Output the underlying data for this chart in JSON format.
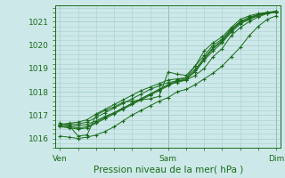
{
  "xlabel": "Pression niveau de la mer( hPa )",
  "xtick_labels": [
    "Ven",
    "Sam",
    "Dim"
  ],
  "xtick_positions": [
    0,
    48,
    96
  ],
  "ytick_values": [
    1016,
    1017,
    1018,
    1019,
    1020,
    1021
  ],
  "ylim": [
    1015.6,
    1021.7
  ],
  "xlim": [
    -2,
    98
  ],
  "bg_color": "#cce8e8",
  "grid_color": "#aacfcf",
  "line_color": "#1a6b1a",
  "marker": "+",
  "series": [
    [
      [
        0,
        1016.65
      ],
      [
        4,
        1016.55
      ],
      [
        8,
        1016.1
      ],
      [
        12,
        1016.15
      ],
      [
        16,
        1017.0
      ],
      [
        20,
        1017.2
      ],
      [
        24,
        1017.35
      ],
      [
        28,
        1017.55
      ],
      [
        32,
        1017.6
      ],
      [
        36,
        1017.65
      ],
      [
        40,
        1017.7
      ],
      [
        44,
        1017.8
      ],
      [
        48,
        1018.85
      ],
      [
        52,
        1018.75
      ],
      [
        56,
        1018.7
      ],
      [
        60,
        1019.1
      ],
      [
        64,
        1019.55
      ],
      [
        68,
        1020.0
      ],
      [
        72,
        1020.25
      ],
      [
        76,
        1020.7
      ],
      [
        80,
        1021.0
      ],
      [
        84,
        1021.1
      ],
      [
        88,
        1021.3
      ],
      [
        92,
        1021.35
      ],
      [
        96,
        1021.4
      ]
    ],
    [
      [
        0,
        1016.1
      ],
      [
        4,
        1016.05
      ],
      [
        8,
        1016.0
      ],
      [
        12,
        1016.05
      ],
      [
        16,
        1016.15
      ],
      [
        20,
        1016.3
      ],
      [
        24,
        1016.5
      ],
      [
        28,
        1016.75
      ],
      [
        32,
        1017.0
      ],
      [
        36,
        1017.2
      ],
      [
        40,
        1017.4
      ],
      [
        44,
        1017.6
      ],
      [
        48,
        1017.75
      ],
      [
        52,
        1018.0
      ],
      [
        56,
        1018.1
      ],
      [
        60,
        1018.3
      ],
      [
        64,
        1018.55
      ],
      [
        68,
        1018.8
      ],
      [
        72,
        1019.1
      ],
      [
        76,
        1019.5
      ],
      [
        80,
        1019.9
      ],
      [
        84,
        1020.4
      ],
      [
        88,
        1020.8
      ],
      [
        92,
        1021.1
      ],
      [
        96,
        1021.25
      ]
    ],
    [
      [
        0,
        1016.6
      ],
      [
        4,
        1016.65
      ],
      [
        8,
        1016.7
      ],
      [
        12,
        1016.8
      ],
      [
        16,
        1017.05
      ],
      [
        20,
        1017.25
      ],
      [
        24,
        1017.45
      ],
      [
        28,
        1017.65
      ],
      [
        32,
        1017.85
      ],
      [
        36,
        1018.05
      ],
      [
        40,
        1018.2
      ],
      [
        44,
        1018.35
      ],
      [
        48,
        1018.5
      ],
      [
        52,
        1018.55
      ],
      [
        56,
        1018.6
      ],
      [
        60,
        1019.1
      ],
      [
        64,
        1019.75
      ],
      [
        68,
        1020.1
      ],
      [
        72,
        1020.35
      ],
      [
        76,
        1020.75
      ],
      [
        80,
        1021.1
      ],
      [
        84,
        1021.25
      ],
      [
        88,
        1021.35
      ],
      [
        92,
        1021.4
      ],
      [
        96,
        1021.45
      ]
    ],
    [
      [
        0,
        1016.55
      ],
      [
        4,
        1016.5
      ],
      [
        8,
        1016.55
      ],
      [
        12,
        1016.6
      ],
      [
        16,
        1016.75
      ],
      [
        20,
        1016.95
      ],
      [
        24,
        1017.1
      ],
      [
        28,
        1017.3
      ],
      [
        32,
        1017.5
      ],
      [
        36,
        1017.7
      ],
      [
        40,
        1017.9
      ],
      [
        44,
        1018.1
      ],
      [
        48,
        1018.3
      ],
      [
        52,
        1018.4
      ],
      [
        56,
        1018.5
      ],
      [
        60,
        1018.9
      ],
      [
        64,
        1019.4
      ],
      [
        68,
        1019.85
      ],
      [
        72,
        1020.15
      ],
      [
        76,
        1020.6
      ],
      [
        80,
        1020.95
      ],
      [
        84,
        1021.15
      ],
      [
        88,
        1021.3
      ],
      [
        92,
        1021.4
      ],
      [
        96,
        1021.42
      ]
    ],
    [
      [
        0,
        1016.6
      ],
      [
        4,
        1016.6
      ],
      [
        8,
        1016.62
      ],
      [
        12,
        1016.7
      ],
      [
        16,
        1016.9
      ],
      [
        20,
        1017.1
      ],
      [
        24,
        1017.3
      ],
      [
        28,
        1017.5
      ],
      [
        32,
        1017.7
      ],
      [
        36,
        1017.9
      ],
      [
        40,
        1018.1
      ],
      [
        44,
        1018.25
      ],
      [
        48,
        1018.4
      ],
      [
        52,
        1018.45
      ],
      [
        56,
        1018.5
      ],
      [
        60,
        1018.7
      ],
      [
        64,
        1019.0
      ],
      [
        68,
        1019.5
      ],
      [
        72,
        1019.85
      ],
      [
        76,
        1020.4
      ],
      [
        80,
        1020.75
      ],
      [
        84,
        1021.0
      ],
      [
        88,
        1021.2
      ],
      [
        92,
        1021.35
      ],
      [
        96,
        1021.45
      ]
    ],
    [
      [
        0,
        1016.5
      ],
      [
        4,
        1016.45
      ],
      [
        8,
        1016.4
      ],
      [
        12,
        1016.45
      ],
      [
        16,
        1016.65
      ],
      [
        20,
        1016.85
      ],
      [
        24,
        1017.05
      ],
      [
        28,
        1017.25
      ],
      [
        32,
        1017.45
      ],
      [
        36,
        1017.65
      ],
      [
        40,
        1017.85
      ],
      [
        44,
        1018.05
      ],
      [
        48,
        1018.25
      ],
      [
        52,
        1018.45
      ],
      [
        56,
        1018.55
      ],
      [
        60,
        1018.85
      ],
      [
        64,
        1019.35
      ],
      [
        68,
        1019.75
      ],
      [
        72,
        1020.1
      ],
      [
        76,
        1020.55
      ],
      [
        80,
        1020.9
      ],
      [
        84,
        1021.1
      ],
      [
        88,
        1021.25
      ],
      [
        92,
        1021.37
      ],
      [
        96,
        1021.43
      ]
    ],
    [
      [
        0,
        1016.55
      ],
      [
        4,
        1016.5
      ],
      [
        8,
        1016.45
      ],
      [
        12,
        1016.5
      ],
      [
        16,
        1016.7
      ],
      [
        20,
        1016.9
      ],
      [
        24,
        1017.1
      ],
      [
        28,
        1017.3
      ],
      [
        32,
        1017.5
      ],
      [
        36,
        1017.7
      ],
      [
        40,
        1017.9
      ],
      [
        44,
        1018.1
      ],
      [
        48,
        1018.3
      ],
      [
        52,
        1018.5
      ],
      [
        56,
        1018.6
      ],
      [
        60,
        1018.95
      ],
      [
        64,
        1019.45
      ],
      [
        68,
        1019.9
      ],
      [
        72,
        1020.2
      ],
      [
        76,
        1020.65
      ],
      [
        80,
        1021.0
      ],
      [
        84,
        1021.2
      ],
      [
        88,
        1021.3
      ],
      [
        92,
        1021.38
      ],
      [
        96,
        1021.44
      ]
    ]
  ]
}
